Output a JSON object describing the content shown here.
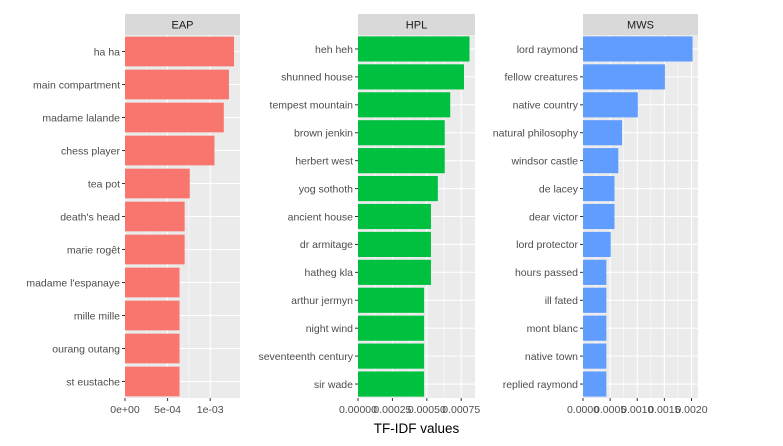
{
  "chart_data": {
    "type": "bar",
    "orientation": "horizontal",
    "xlabel": "TF-IDF values",
    "grid": true,
    "panels": [
      {
        "title": "EAP",
        "color": "#F8766D",
        "xlim": [
          0,
          0.00135
        ],
        "ticks": [
          0,
          0.0005,
          0.001
        ],
        "tick_labels": [
          "0e+00",
          "5e-04",
          "1e-03"
        ],
        "categories": [
          "ha ha",
          "main compartment",
          "madame lalande",
          "chess player",
          "tea pot",
          "death's head",
          "marie rogêt",
          "madame l'espanaye",
          "mille mille",
          "ourang outang",
          "st eustache"
        ],
        "values": [
          0.00128,
          0.00122,
          0.00116,
          0.00105,
          0.00076,
          0.0007,
          0.0007,
          0.00064,
          0.00064,
          0.00064,
          0.00064
        ]
      },
      {
        "title": "HPL",
        "color": "#00C040",
        "xlim": [
          0,
          0.00085
        ],
        "ticks": [
          0,
          0.00025,
          0.0005,
          0.00075
        ],
        "tick_labels": [
          "0.00000",
          "0.00025",
          "0.00050",
          "0.00075"
        ],
        "categories": [
          "heh heh",
          "shunned house",
          "tempest mountain",
          "brown jenkin",
          "herbert west",
          "yog sothoth",
          "ancient house",
          "dr armitage",
          "hatheg kla",
          "arthur jermyn",
          "night wind",
          "seventeenth century",
          "sir wade"
        ],
        "values": [
          0.00081,
          0.00077,
          0.00067,
          0.00063,
          0.00063,
          0.00058,
          0.00053,
          0.00053,
          0.00053,
          0.00048,
          0.00048,
          0.00048,
          0.00048
        ]
      },
      {
        "title": "MWS",
        "color": "#619CFF",
        "xlim": [
          0,
          0.00212
        ],
        "ticks": [
          0,
          0.0005,
          0.001,
          0.0015,
          0.002
        ],
        "tick_labels": [
          "0.0000",
          "0.0005",
          "0.0010",
          "0.0015",
          "0.0020"
        ],
        "categories": [
          "lord raymond",
          "fellow creatures",
          "native country",
          "natural philosophy",
          "windsor castle",
          "de lacey",
          "dear victor",
          "lord protector",
          "hours passed",
          "ill fated",
          "mont blanc",
          "native town",
          "replied raymond"
        ],
        "values": [
          0.00202,
          0.00151,
          0.00101,
          0.00072,
          0.00065,
          0.00058,
          0.00058,
          0.00051,
          0.00043,
          0.00043,
          0.00043,
          0.00043,
          0.00043
        ]
      }
    ]
  }
}
